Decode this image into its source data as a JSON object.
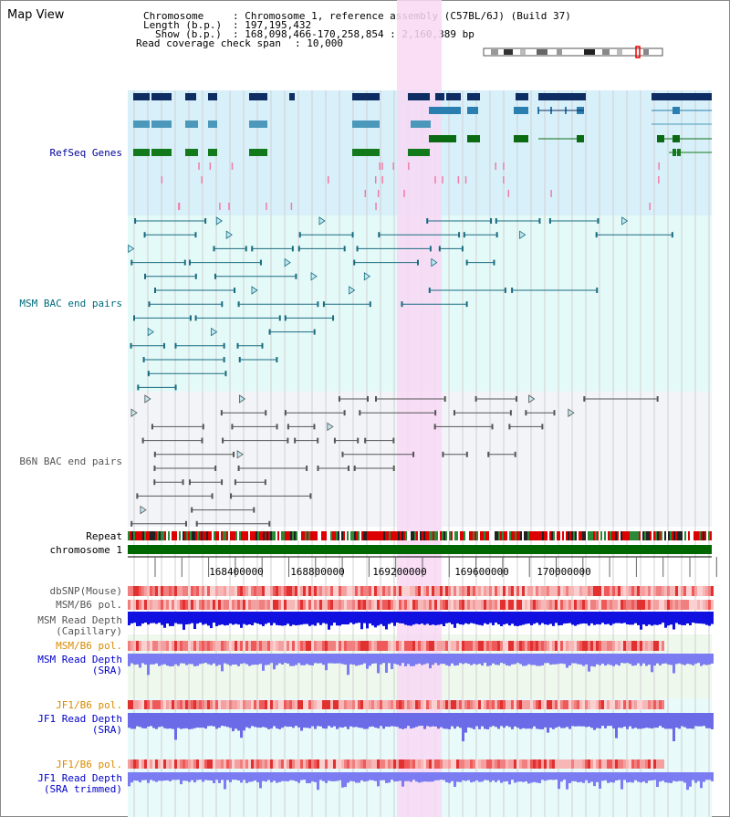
{
  "view_title": "Map View",
  "info": {
    "chromosome_key": "Chromosome",
    "chromosome_val": ": Chromosome 1, reference assembly (C57BL/6J) (Build 37)",
    "length_key": "Length (b.p.)",
    "length_val": ": 197,195,432",
    "show_key": "Show (b.p.)",
    "show_val": ": 168,098,466-170,258,854 : 2,160,389 bp",
    "coverage_key": "Read coverage check span",
    "coverage_val": ": 10,000"
  },
  "tracks": {
    "refseq": "RefSeq Genes",
    "msm_bac": "MSM BAC end pairs",
    "b6n_bac": "B6N BAC end pairs",
    "repeat": "Repeat",
    "chromosome": "chromosome 1",
    "dbsnp": "dbSNP(Mouse)",
    "msm_b6_pol_1": "MSM/B6 pol.",
    "msm_depth_cap_1": "MSM Read Depth",
    "msm_depth_cap_2": "(Capillary)",
    "msm_b6_pol_2": "MSM/B6 pol.",
    "msm_depth_sra_1": "MSM Read Depth",
    "msm_depth_sra_2": "(SRA)",
    "jf1_b6_pol_1": "JF1/B6 pol.",
    "jf1_depth_sra_1": "JF1 Read Depth",
    "jf1_depth_sra_2": "(SRA)",
    "jf1_b6_pol_2": "JF1/B6 pol.",
    "jf1_depth_trim_1": "JF1 Read Depth",
    "jf1_depth_trim_2": "(SRA trimmed)"
  },
  "ruler": {
    "ticks": [
      "168400000",
      "168800000",
      "169200000",
      "169600000",
      "170000000"
    ]
  },
  "colors": {
    "label_navy": "#000099",
    "label_teal": "#006b7b",
    "label_gray": "#555555",
    "label_orange": "#d98a00",
    "label_blue": "#0000cc",
    "highlight": "#f8d8f4",
    "refseq_bg": "#d8f0fa",
    "msm_bg": "#e4faf8",
    "b6n_bg": "#f2f4f8",
    "chromosome_bar": "#006600"
  }
}
